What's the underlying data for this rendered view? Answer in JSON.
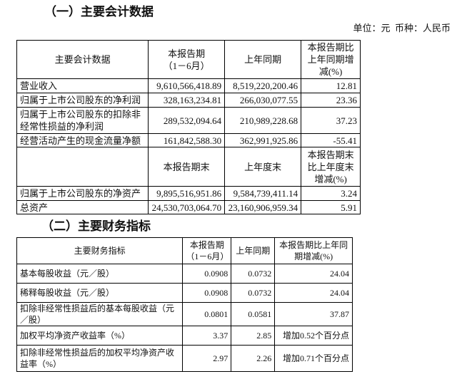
{
  "section1": {
    "title": "（一）主要会计数据",
    "unit_line": "单位：元  币种：人民币",
    "header": [
      "主要会计数据",
      "本报告期\n（1－6月）",
      "上年同期",
      "本报告期比上年同期增减(%)"
    ],
    "rows": [
      [
        "营业收入",
        "9,610,566,418.89",
        "8,519,220,200.46",
        "12.81"
      ],
      [
        "归属于上市公司股东的净利润",
        "328,163,234.81",
        "266,030,077.55",
        "23.36"
      ],
      [
        "归属于上市公司股东的扣除非经常性损益的净利润",
        "289,532,094.64",
        "210,989,228.68",
        "37.23"
      ],
      [
        "经营活动产生的现金流量净额",
        "161,842,588.30",
        "362,991,925.86",
        "-55.41"
      ]
    ],
    "header2": [
      "",
      "本报告期末",
      "上年度末",
      "本报告期末比上年度末增减(%)"
    ],
    "rows2": [
      [
        "归属于上市公司股东的净资产",
        "9,895,516,951.86",
        "9,584,739,411.14",
        "3.24"
      ],
      [
        "总资产",
        "24,530,703,064.70",
        "23,160,906,959.34",
        "5.91"
      ]
    ]
  },
  "section2": {
    "title": "（二）主要财务指标",
    "header": [
      "主要财务指标",
      "本报告期（1－6月）",
      "上年同期",
      "本报告期比上年同期增减(%)"
    ],
    "rows": [
      [
        "基本每股收益（元／股）",
        "0.0908",
        "0.0732",
        "24.04"
      ],
      [
        "稀释每股收益（元／股）",
        "0.0908",
        "0.0732",
        "24.04"
      ],
      [
        "扣除非经常性损益后的基本每股收益（元／股）",
        "0.0801",
        "0.0581",
        "37.87"
      ],
      [
        "加权平均净资产收益率（%）",
        "3.37",
        "2.85",
        "增加0.52个百分点"
      ],
      [
        "扣除非经常性损益后的加权平均净资产收益率（%）",
        "2.97",
        "2.26",
        "增加0.71个百分点"
      ]
    ]
  }
}
